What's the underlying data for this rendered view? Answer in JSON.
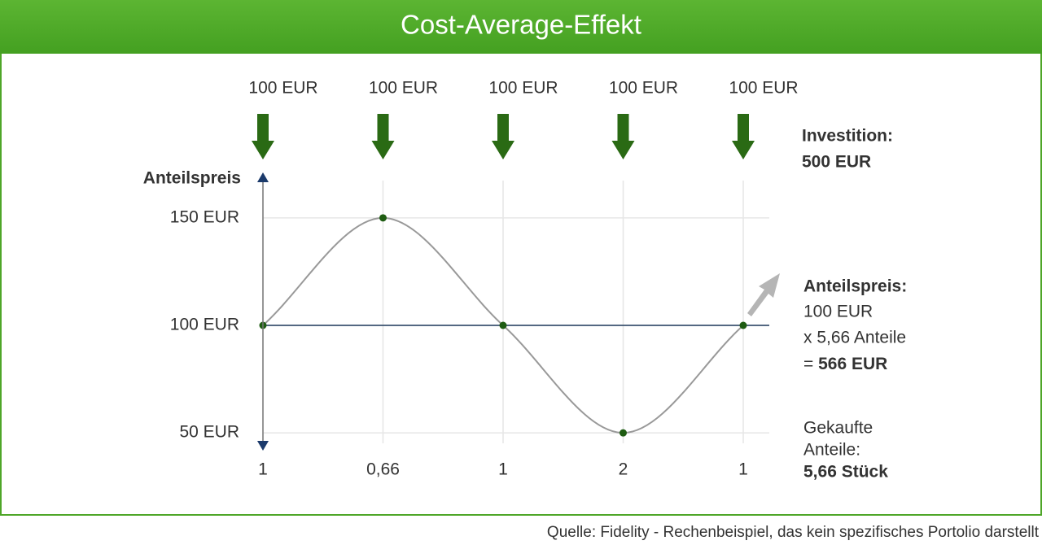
{
  "chart_data": {
    "type": "line",
    "title": "Cost-Average-Effekt",
    "y_label": "Anteilspreis",
    "categories": [
      "1",
      "0,66",
      "1",
      "2",
      "1"
    ],
    "values": [
      100,
      150,
      100,
      50,
      100
    ],
    "color": "#999999",
    "marker_color": "#1e5c12",
    "ylim": [
      44,
      170
    ],
    "yticks": [
      {
        "value": 50,
        "label": "50 EUR"
      },
      {
        "value": 100,
        "label": "100 EUR"
      },
      {
        "value": 150,
        "label": "150 EUR"
      }
    ],
    "reference_line": 100,
    "grid": true,
    "investment": {
      "values": [
        100,
        100,
        100,
        100,
        100
      ],
      "value_labels": [
        "100 EUR",
        "100 EUR",
        "100 EUR",
        "100 EUR",
        "100 EUR"
      ],
      "color": "#2a6a14"
    },
    "summary": {
      "investment_title": "Investition:",
      "investment_total": "500 EUR",
      "price_title": "Anteilspreis:",
      "price": "100 EUR",
      "shares_line": "x 5,66 Anteile",
      "result_prefix": "=",
      "result": "566 EUR",
      "bought_title_1": "Gekaufte",
      "bought_title_2": "Anteile:",
      "bought": "5,66 Stück"
    },
    "source": "Quelle: Fidelity - Rechenbeispiel, das kein spezifisches Portolio darstellt"
  }
}
